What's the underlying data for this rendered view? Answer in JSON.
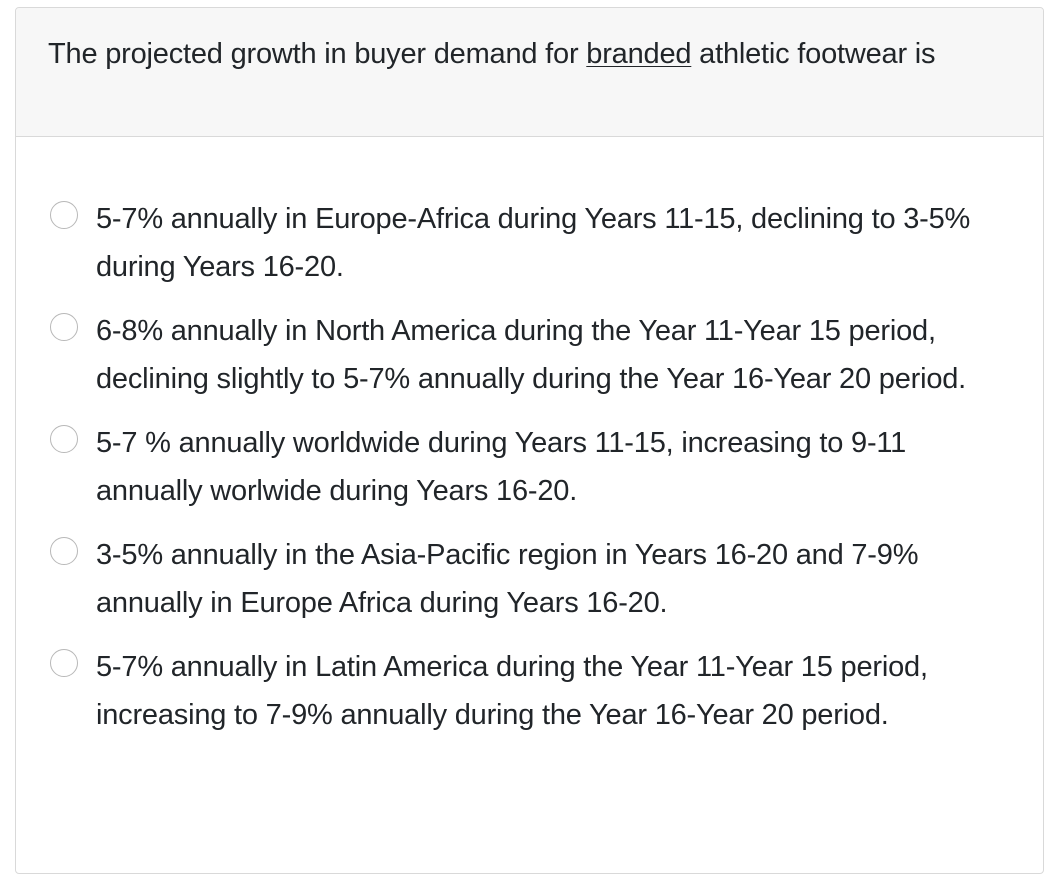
{
  "question": {
    "text_before": "The projected growth in buyer demand for ",
    "underlined": "branded",
    "text_after": " athletic footwear is"
  },
  "options": [
    {
      "label": "5-7% annually in Europe-Africa during Years 11-15, declining to 3-5% during Years 16-20."
    },
    {
      "label": "6-8% annually in North America during the Year 11-Year 15 period, declining slightly to 5-7% annually during the Year 16-Year 20 period."
    },
    {
      "label": "5-7 % annually worldwide during Years 11-15, increasing to 9-11 annually worlwide during Years 16-20."
    },
    {
      "label": "3-5% annually in the Asia-Pacific region in Years 16-20 and 7-9% annually in Europe Africa during Years 16-20."
    },
    {
      "label": "5-7% annually in Latin America during the Year 11-Year 15 period, increasing to 7-9% annually during the Year 16-Year 20 period."
    }
  ]
}
